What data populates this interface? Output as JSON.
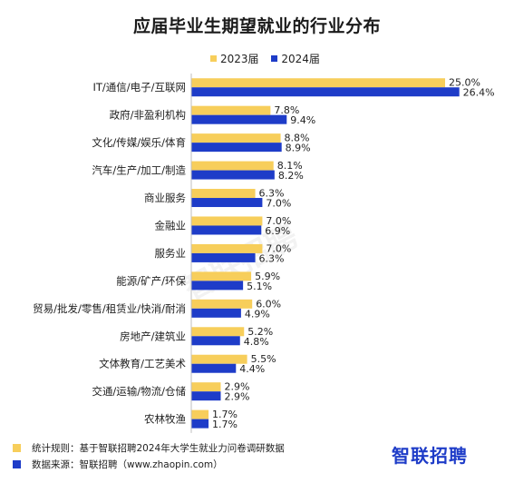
{
  "title": "应届毕业生期望就业的行业分布",
  "colors": {
    "s2023": "#F7CE5B",
    "s2024": "#1E3CC8"
  },
  "chart_data": {
    "type": "bar",
    "orientation": "horizontal",
    "title": "应届毕业生期望就业的行业分布",
    "categories": [
      "IT/通信/电子/互联网",
      "政府/非盈利机构",
      "文化/传媒/娱乐/体育",
      "汽车/生产/加工/制造",
      "商业服务",
      "金融业",
      "服务业",
      "能源/矿产/环保",
      "贸易/批发/零售/租赁业/快消/耐消",
      "房地产/建筑业",
      "文体教育/工艺美术",
      "交通/运输/物流/仓储",
      "农林牧渔"
    ],
    "series": [
      {
        "name": "2023届",
        "color": "#F7CE5B",
        "values": [
          25.0,
          7.8,
          8.8,
          8.1,
          6.3,
          7.0,
          7.0,
          5.9,
          6.0,
          5.2,
          5.5,
          2.9,
          1.7
        ]
      },
      {
        "name": "2024届",
        "color": "#1E3CC8",
        "values": [
          26.4,
          9.4,
          8.9,
          8.2,
          7.0,
          6.9,
          6.3,
          5.1,
          4.9,
          4.8,
          4.4,
          2.9,
          1.7
        ]
      }
    ],
    "value_suffix": "%",
    "legend_position": "top",
    "grid": false
  },
  "footer": {
    "rule": "统计规则：基于智联招聘2024年大学生就业力问卷调研数据",
    "source": "数据来源：智联招聘（www.zhaopin.com）"
  },
  "brand": "智联招聘",
  "watermark": "智联招聘"
}
